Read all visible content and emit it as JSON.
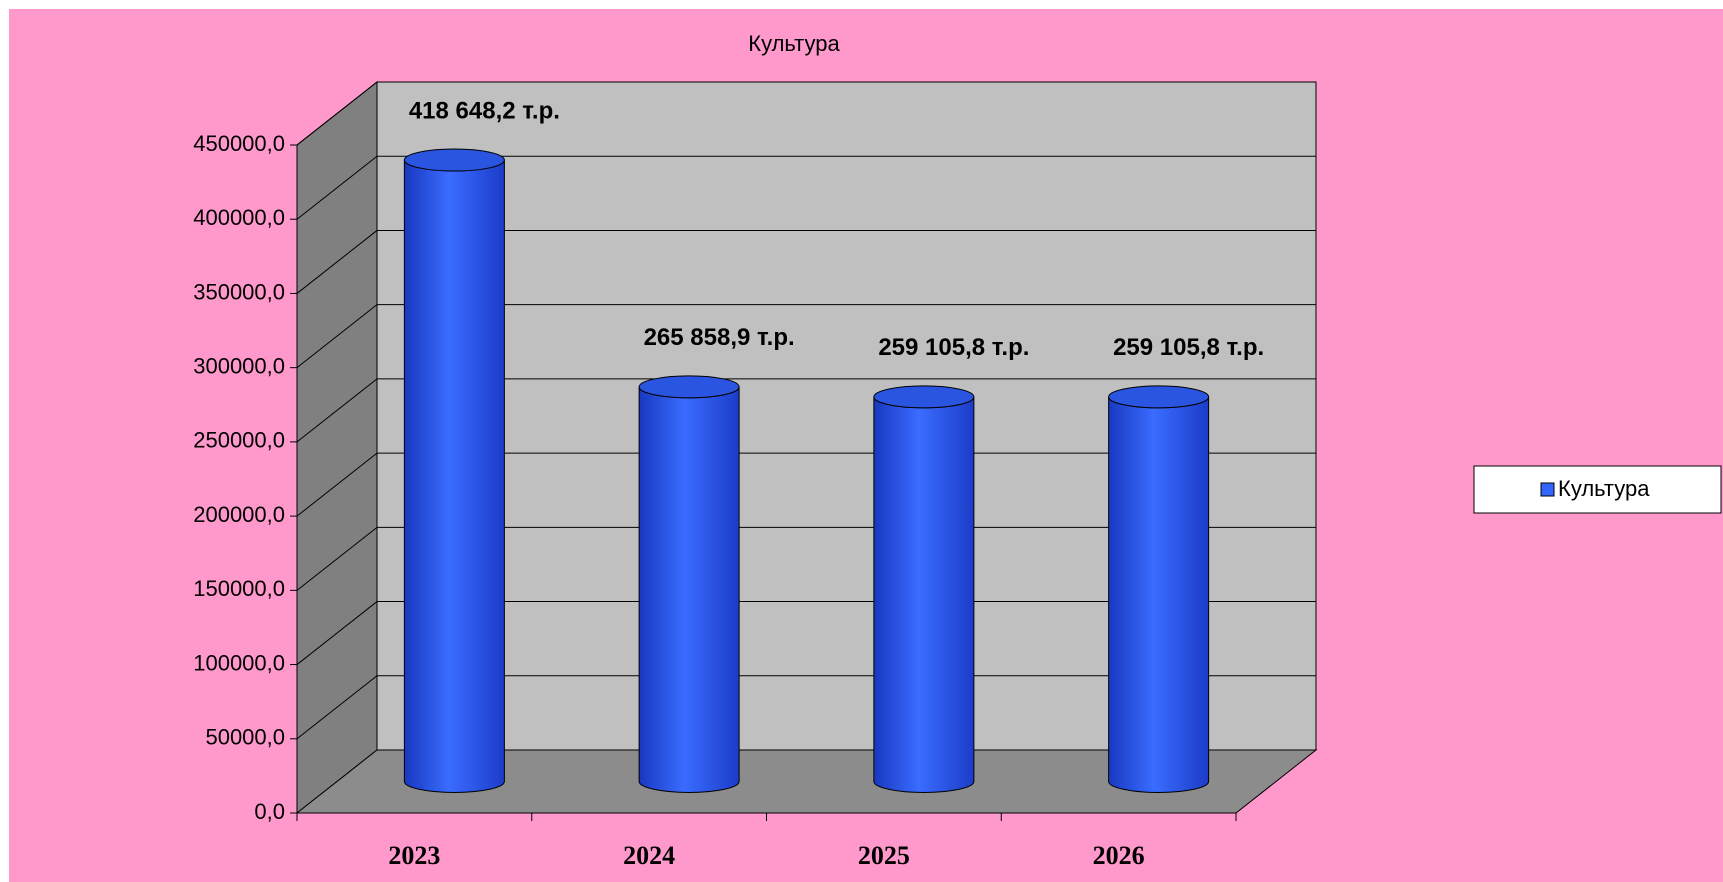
{
  "chart_data": {
    "type": "bar",
    "title": "Культура",
    "categories": [
      "2023",
      "2024",
      "2025",
      "2026"
    ],
    "series": [
      {
        "name": "Культура",
        "color": "#3366ff",
        "values": [
          418648.2,
          265858.9,
          259105.8,
          259105.8
        ],
        "value_labels": [
          "418 648,2 т.р.",
          "265 858,9 т.р.",
          "259 105,8 т.р.",
          "259 105,8 т.р."
        ]
      }
    ],
    "ylim": [
      0,
      450000
    ],
    "yticks": [
      {
        "value": 0,
        "label": "0,0"
      },
      {
        "value": 50000,
        "label": "50000,0"
      },
      {
        "value": 100000,
        "label": "100000,0"
      },
      {
        "value": 150000,
        "label": "150000,0"
      },
      {
        "value": 200000,
        "label": "200000,0"
      },
      {
        "value": 250000,
        "label": "250000,0"
      },
      {
        "value": 300000,
        "label": "300000,0"
      },
      {
        "value": 350000,
        "label": "350000,0"
      },
      {
        "value": 400000,
        "label": "400000,0"
      },
      {
        "value": 450000,
        "label": "450000,0"
      }
    ],
    "grid": true,
    "legend": "right"
  }
}
